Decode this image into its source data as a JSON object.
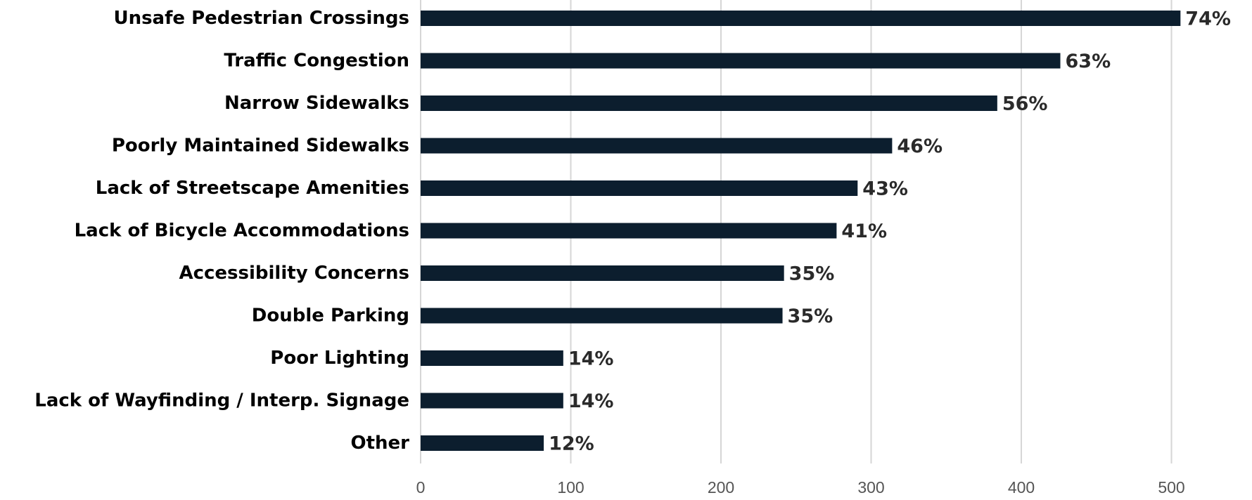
{
  "chart_data": {
    "type": "bar",
    "orientation": "horizontal",
    "title": "",
    "xlabel": "",
    "ylabel": "",
    "xlim": [
      0,
      525
    ],
    "xticks": [
      0,
      100,
      200,
      300,
      400,
      500
    ],
    "grid": true,
    "legend": "none",
    "bar_color": "#0c1e2e",
    "categories": [
      "Unsafe Pedestrian Crossings",
      "Traffic Congestion",
      "Narrow Sidewalks",
      "Poorly Maintained Sidewalks",
      "Lack of Streetscape Amenities",
      "Lack of Bicycle Accommodations",
      "Accessibility Concerns",
      "Double Parking",
      "Poor Lighting",
      "Lack of Wayfinding / Interp. Signage",
      "Other"
    ],
    "values": [
      506,
      426,
      384,
      314,
      291,
      277,
      242,
      241,
      95,
      95,
      82
    ],
    "data_labels": [
      "74%",
      "63%",
      "56%",
      "46%",
      "43%",
      "41%",
      "35%",
      "35%",
      "14%",
      "14%",
      "12%"
    ]
  }
}
